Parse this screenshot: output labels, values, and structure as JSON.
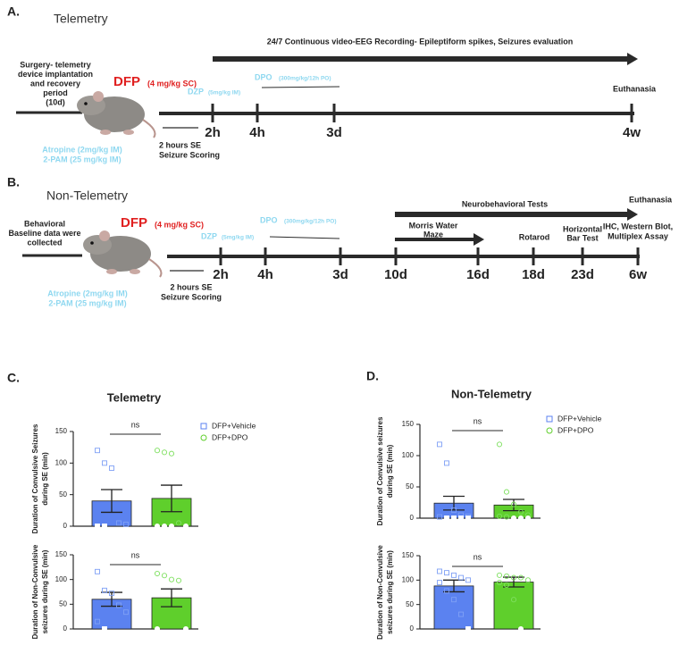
{
  "panel_a": {
    "letter": "A.",
    "title": "Telemetry",
    "recording": "24/7 Continuous video-EEG Recording- Epileptiform spikes, Seizures evaluation",
    "end_label": "Euthanasia",
    "pre": [
      "Surgery- telemetry",
      "device implantation",
      "and recovery",
      "period",
      "(10d)"
    ],
    "dfp": "DFP",
    "dfp_dose": "(4 mg/kg SC)",
    "dzp": "DZP",
    "dzp_dose": "(5mg/kg IM)",
    "dpo": "DPO",
    "dpo_dose": "(300mg/kg/12h PO)",
    "timepoints": [
      "2h",
      "4h",
      "3d",
      "4w"
    ],
    "scoring": [
      "2 hours SE",
      "Seizure Scoring"
    ],
    "rescue": [
      "Atropine (2mg/kg IM)",
      "2-PAM (25 mg/kg IM)"
    ]
  },
  "panel_b": {
    "letter": "B.",
    "title": "Non-Telemetry",
    "tests": "Neurobehavioral Tests",
    "end_label": "Euthanasia",
    "pre": [
      "Behavioral",
      "Baseline data were",
      "collected"
    ],
    "dfp": "DFP",
    "dfp_dose": "(4 mg/kg SC)",
    "dzp": "DZP",
    "dzp_dose": "(5mg/kg IM)",
    "dpo": "DPO",
    "dpo_dose": "(300mg/kg/12h PO)",
    "timepoints": [
      "2h",
      "4h",
      "3d",
      "10d",
      "16d",
      "18d",
      "23d",
      "6w"
    ],
    "morris": [
      "Morris Water",
      "Maze"
    ],
    "rotarod": "Rotarod",
    "horizontal": [
      "Horizontal",
      "Bar Test"
    ],
    "assays": [
      "IHC, Western Blot,",
      "Multiplex Assay"
    ],
    "scoring": [
      "2 hours SE",
      "Seizure Scoring"
    ],
    "rescue": [
      "Atropine (2mg/kg IM)",
      "2-PAM (25 mg/kg IM)"
    ]
  },
  "panel_c": {
    "letter": "C."
  },
  "panel_d": {
    "letter": "D."
  },
  "chart_data": [
    {
      "type": "bar",
      "title": "Telemetry",
      "ylabel": [
        "Duration of Convulsive Seizures",
        "during SE (min)"
      ],
      "ylim": [
        0,
        150
      ],
      "yticks": [
        0,
        50,
        100,
        150
      ],
      "annotation": "ns",
      "series": [
        {
          "name": "DFP+Vehicle",
          "color": "#5b82f0",
          "marker": "square",
          "values": [
            40
          ],
          "errors": [
            18
          ],
          "points": [
            120,
            100,
            92,
            5,
            3,
            0,
            0
          ]
        },
        {
          "name": "DFP+DPO",
          "color": "#5fcf2c",
          "marker": "circle",
          "values": [
            44
          ],
          "errors": [
            21
          ],
          "points": [
            120,
            117,
            115,
            5,
            0,
            0,
            0,
            0
          ]
        }
      ]
    },
    {
      "type": "bar",
      "ylabel": [
        "Duration of Non-Convulsive",
        "seizures during SE (min)"
      ],
      "ylim": [
        0,
        150
      ],
      "yticks": [
        0,
        50,
        100,
        150
      ],
      "annotation": "ns",
      "series": [
        {
          "color": "#5b82f0",
          "marker": "square",
          "values": [
            60
          ],
          "errors": [
            14
          ],
          "points": [
            116,
            78,
            72,
            48,
            34,
            15,
            0
          ]
        },
        {
          "color": "#5fcf2c",
          "marker": "circle",
          "values": [
            63
          ],
          "errors": [
            18
          ],
          "points": [
            112,
            108,
            100,
            98,
            0,
            0
          ]
        }
      ]
    },
    {
      "type": "bar",
      "title": "Non-Telemetry",
      "ylabel": [
        "Duration of Convulsive seizures",
        "during SE (min)"
      ],
      "ylim": [
        0,
        150
      ],
      "yticks": [
        0,
        50,
        100,
        150
      ],
      "annotation": "ns",
      "series": [
        {
          "name": "DFP+Vehicle",
          "color": "#5b82f0",
          "marker": "square",
          "values": [
            24
          ],
          "errors": [
            11
          ],
          "points": [
            118,
            88,
            13,
            5,
            3,
            2,
            0,
            0,
            0,
            0
          ]
        },
        {
          "name": "DFP+DPO",
          "color": "#5fcf2c",
          "marker": "circle",
          "values": [
            21
          ],
          "errors": [
            9
          ],
          "points": [
            118,
            42,
            22,
            10,
            5,
            3,
            2,
            0,
            0,
            0
          ]
        }
      ]
    },
    {
      "type": "bar",
      "ylabel": [
        "Duration of  Non-Convulsive",
        "seizures during SE (min)"
      ],
      "ylim": [
        0,
        150
      ],
      "yticks": [
        0,
        50,
        100,
        150
      ],
      "annotation": "ns",
      "series": [
        {
          "color": "#5b82f0",
          "marker": "square",
          "values": [
            88
          ],
          "errors": [
            12
          ],
          "points": [
            118,
            115,
            110,
            105,
            100,
            95,
            78,
            60,
            30,
            0
          ]
        },
        {
          "color": "#5fcf2c",
          "marker": "circle",
          "values": [
            96
          ],
          "errors": [
            10
          ],
          "points": [
            110,
            108,
            105,
            105,
            100,
            95,
            90,
            60,
            0
          ]
        }
      ]
    }
  ]
}
